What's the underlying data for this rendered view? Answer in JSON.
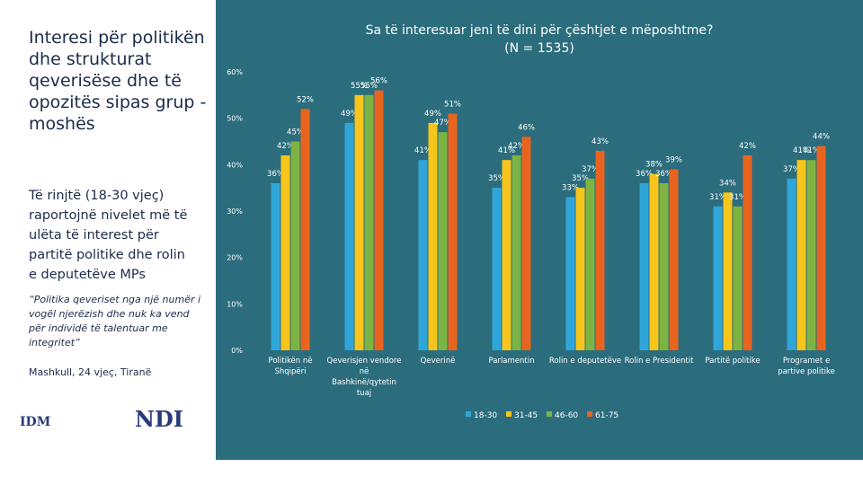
{
  "side_panel": {
    "title": "Interesi për politikën dhe strukturat qeverisëse dhe të opozitës sipas grup - moshës",
    "summary": "Të rinjtë (18-30 vjeç) raportojnë nivelet më të ulëta të interest për partitë politike dhe rolin e deputetëve MPs",
    "quote": "“Politika qeveriset nga një numër i vogël njerëzish dhe nuk ka vend për individë të talentuar me integritet”",
    "quote_author": "Mashkull, 24 vjeç, Tiranë",
    "logos": [
      "IDM",
      "NDI"
    ]
  },
  "chart_data": {
    "type": "bar",
    "title": "Sa të interesuar jeni të dini për çështjet e mëposhtme?",
    "subtitle": "(N = 1535)",
    "categories": [
      "Politikën në Shqipëri",
      "Qeverisjen vendore në Bashkinë/qytetin tuaj",
      "Qeverinë",
      "Parlamentin",
      "Rolin e deputetëve",
      "Rolin e Presidentit",
      "Partitë politike",
      "Programet e partive politike"
    ],
    "series": [
      {
        "name": "18-30",
        "color": "#2fa6d9",
        "values": [
          36,
          49,
          41,
          35,
          33,
          36,
          31,
          37
        ],
        "value_labels": [
          "36%",
          "49%",
          "41%",
          "35%",
          "33%",
          "36%",
          "31%",
          "37%"
        ]
      },
      {
        "name": "31-45",
        "color": "#f7c51b",
        "values": [
          42,
          55,
          49,
          41,
          35,
          38,
          34,
          41
        ],
        "value_labels": [
          "42%",
          "55%",
          "49%",
          "41%",
          "35%",
          "38%",
          "34%",
          "41%"
        ]
      },
      {
        "name": "46-60",
        "color": "#7cb342",
        "values": [
          45,
          55,
          47,
          42,
          37,
          36,
          31,
          41
        ],
        "value_labels": [
          "45%",
          "55%",
          "47%",
          "42%",
          "37%",
          "36%",
          "31%",
          "41%"
        ]
      },
      {
        "name": "61-75",
        "color": "#e8641e",
        "values": [
          52,
          56,
          51,
          46,
          43,
          39,
          42,
          44
        ],
        "value_labels": [
          "52%",
          "56%",
          "51%",
          "46%",
          "43%",
          "39%",
          "42%",
          "44%"
        ]
      }
    ],
    "ylim": [
      0,
      60
    ],
    "yticks": [
      {
        "value": 0,
        "label": "0%"
      },
      {
        "value": 10,
        "label": "10%"
      },
      {
        "value": 20,
        "label": "20%"
      },
      {
        "value": 30,
        "label": "30%"
      },
      {
        "value": 40,
        "label": "40%"
      },
      {
        "value": 50,
        "label": "50%"
      },
      {
        "value": 60,
        "label": "60%"
      }
    ],
    "grid": false,
    "legend": "bottom"
  }
}
